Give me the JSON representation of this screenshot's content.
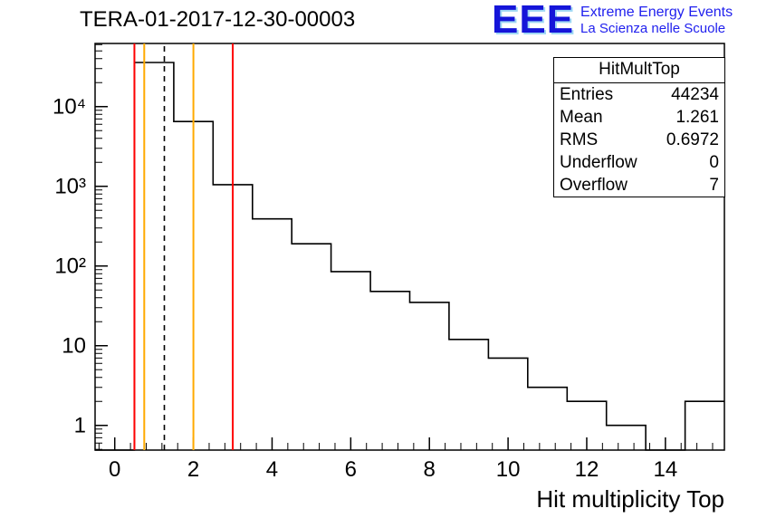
{
  "header": {
    "title": "TERA-01-2017-12-30-00003",
    "logo": {
      "text": "EEE",
      "line1": "Extreme Energy Events",
      "line2": "La Scienza nelle Scuole",
      "color": "#1515d9"
    }
  },
  "stats_box": {
    "title": "HitMultTop",
    "rows": [
      {
        "label": "Entries",
        "value": "44234"
      },
      {
        "label": "Mean",
        "value": "1.261"
      },
      {
        "label": "RMS",
        "value": "0.6972"
      },
      {
        "label": "Underflow",
        "value": "0"
      },
      {
        "label": "Overflow",
        "value": "7"
      }
    ]
  },
  "chart_data": {
    "type": "bar",
    "subtype": "step-histogram",
    "title": "TERA-01-2017-12-30-00003",
    "xlabel": "Hit multiplicity Top",
    "ylabel": "",
    "y_scale": "log",
    "x_range": [
      -0.5,
      15.5
    ],
    "y_range": [
      0.49,
      62000
    ],
    "bin_width": 1,
    "bin_centers": [
      0,
      1,
      2,
      3,
      4,
      5,
      6,
      7,
      8,
      9,
      10,
      11,
      12,
      13,
      14,
      15
    ],
    "counts": [
      0,
      35800,
      6500,
      1050,
      390,
      190,
      85,
      48,
      35,
      12,
      7,
      3,
      2,
      1,
      0,
      2
    ],
    "xticks_major": [
      0,
      2,
      4,
      6,
      8,
      10,
      12,
      14
    ],
    "xtick_labels": [
      "0",
      "2",
      "4",
      "6",
      "8",
      "10",
      "12",
      "14"
    ],
    "yticks_major": [
      1,
      10,
      100,
      1000,
      10000
    ],
    "ytick_labels": [
      "1",
      "10",
      "10²",
      "10³",
      "10⁴"
    ],
    "line_color": "#000000",
    "grid": false,
    "legend": "none",
    "marker_lines": [
      {
        "x": 0.5,
        "color": "#ff0000",
        "style": "solid"
      },
      {
        "x": 0.75,
        "color": "#ffaa00",
        "style": "solid"
      },
      {
        "x": 1.261,
        "color": "#000000",
        "style": "dashed"
      },
      {
        "x": 2.0,
        "color": "#ffaa00",
        "style": "solid"
      },
      {
        "x": 3.0,
        "color": "#ff0000",
        "style": "solid"
      }
    ]
  }
}
